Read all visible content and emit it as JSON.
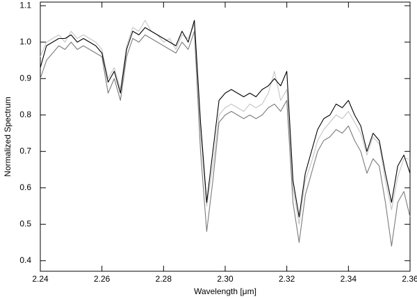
{
  "chart_data": {
    "type": "line",
    "x_label": "Wavelength [μm]",
    "y_label": "Normalized Spectrum",
    "x": [
      2.24,
      2.242,
      2.244,
      2.246,
      2.248,
      2.25,
      2.252,
      2.254,
      2.256,
      2.258,
      2.26,
      2.262,
      2.264,
      2.266,
      2.268,
      2.27,
      2.272,
      2.274,
      2.276,
      2.278,
      2.28,
      2.282,
      2.284,
      2.286,
      2.288,
      2.29,
      2.292,
      2.294,
      2.296,
      2.298,
      2.3,
      2.302,
      2.304,
      2.306,
      2.308,
      2.31,
      2.312,
      2.314,
      2.316,
      2.318,
      2.32,
      2.322,
      2.324,
      2.326,
      2.328,
      2.33,
      2.332,
      2.334,
      2.336,
      2.338,
      2.34,
      2.342,
      2.344,
      2.346,
      2.348,
      2.35,
      2.352,
      2.354,
      2.356,
      2.358,
      2.36
    ],
    "series": [
      {
        "color": "#c4c4c4",
        "values": [
          0.96,
          1.0,
          1.01,
          1.02,
          1.0,
          1.03,
          1.01,
          1.02,
          1.01,
          1.0,
          0.98,
          0.9,
          0.93,
          0.87,
          0.99,
          1.04,
          1.03,
          1.06,
          1.03,
          1.02,
          1.0,
          1.01,
          0.98,
          1.02,
          1.01,
          1.05,
          0.75,
          0.55,
          0.66,
          0.8,
          0.82,
          0.83,
          0.82,
          0.81,
          0.83,
          0.82,
          0.83,
          0.86,
          0.92,
          0.84,
          0.87,
          0.6,
          0.5,
          0.62,
          0.67,
          0.73,
          0.76,
          0.78,
          0.8,
          0.79,
          0.81,
          0.78,
          0.75,
          0.69,
          0.74,
          0.72,
          0.62,
          0.54,
          0.63,
          0.68,
          0.68
        ]
      },
      {
        "color": "#7a7a7a",
        "values": [
          0.9,
          0.95,
          0.97,
          0.99,
          0.98,
          1.0,
          0.98,
          0.99,
          0.98,
          0.97,
          0.96,
          0.86,
          0.9,
          0.84,
          0.96,
          1.01,
          1.0,
          1.02,
          1.01,
          1.0,
          0.99,
          0.98,
          0.97,
          1.0,
          0.98,
          1.03,
          0.7,
          0.48,
          0.62,
          0.78,
          0.8,
          0.81,
          0.8,
          0.79,
          0.8,
          0.79,
          0.8,
          0.82,
          0.83,
          0.81,
          0.84,
          0.56,
          0.45,
          0.58,
          0.64,
          0.7,
          0.73,
          0.74,
          0.76,
          0.75,
          0.77,
          0.73,
          0.7,
          0.64,
          0.68,
          0.66,
          0.56,
          0.44,
          0.56,
          0.59,
          0.52
        ]
      },
      {
        "color": "#000000",
        "values": [
          0.93,
          0.99,
          1.0,
          1.01,
          1.01,
          1.02,
          1.0,
          1.01,
          1.0,
          0.99,
          0.97,
          0.89,
          0.92,
          0.86,
          0.98,
          1.03,
          1.02,
          1.04,
          1.03,
          1.02,
          1.01,
          1.0,
          0.99,
          1.03,
          1.0,
          1.06,
          0.78,
          0.56,
          0.7,
          0.84,
          0.86,
          0.87,
          0.86,
          0.85,
          0.86,
          0.85,
          0.87,
          0.88,
          0.9,
          0.88,
          0.92,
          0.62,
          0.52,
          0.64,
          0.7,
          0.76,
          0.79,
          0.8,
          0.83,
          0.82,
          0.84,
          0.8,
          0.77,
          0.7,
          0.75,
          0.73,
          0.64,
          0.56,
          0.66,
          0.69,
          0.64
        ]
      }
    ],
    "xlim": [
      2.24,
      2.36
    ],
    "xticks": [
      2.24,
      2.26,
      2.28,
      {
        "value": 2.3,
        "label": "2.30"
      },
      2.32,
      2.34,
      2.36
    ],
    "ylim": [
      0.371,
      1.11
    ],
    "yticks": [
      0.4,
      0.5,
      0.6,
      0.7,
      0.8,
      0.9,
      {
        "value": 1.0,
        "label": "1.0"
      },
      1.1
    ]
  }
}
